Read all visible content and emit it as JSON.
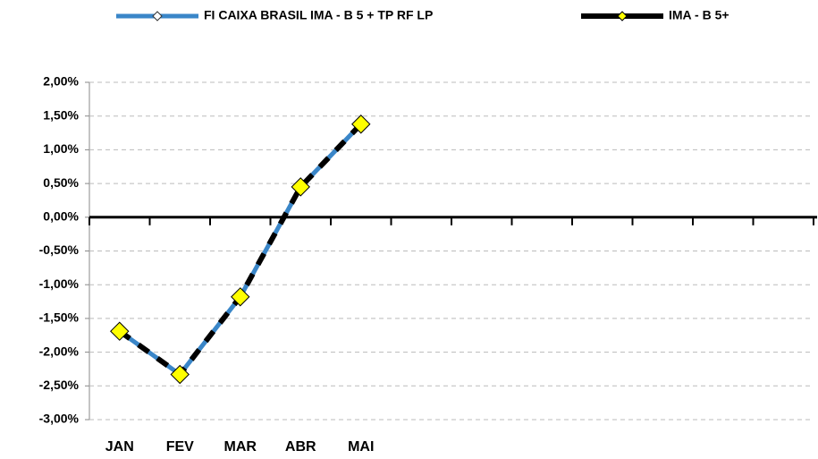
{
  "chart_data": {
    "type": "line",
    "categories": [
      "JAN",
      "FEV",
      "MAR",
      "ABR",
      "MAI",
      null,
      null,
      null,
      null,
      null,
      null,
      null
    ],
    "series": [
      {
        "name": "FI CAIXA BRASIL IMA - B 5 + TP RF LP",
        "color": "#3a86c8",
        "values": [
          -1.69,
          -2.33,
          -1.18,
          0.45,
          1.38,
          null,
          null,
          null,
          null,
          null,
          null,
          null
        ]
      },
      {
        "name": "IMA - B 5+",
        "color": "#000000",
        "values": [
          -1.69,
          -2.33,
          -1.18,
          0.45,
          1.38,
          null,
          null,
          null,
          null,
          null,
          null,
          null
        ]
      }
    ],
    "ylim": [
      -3,
      2
    ],
    "yticks": [
      {
        "value": -3,
        "label": "-3,00%"
      },
      {
        "value": -2.5,
        "label": "-2,50%"
      },
      {
        "value": -2,
        "label": "-2,00%"
      },
      {
        "value": -1.5,
        "label": "-1,50%"
      },
      {
        "value": -1,
        "label": "-1,00%"
      },
      {
        "value": -0.5,
        "label": "-0,50%"
      },
      {
        "value": 0,
        "label": "0,00%"
      },
      {
        "value": 0.5,
        "label": "0,50%"
      },
      {
        "value": 1,
        "label": "1,00%"
      },
      {
        "value": 1.5,
        "label": "1,50%"
      },
      {
        "value": 2,
        "label": "2,00%"
      }
    ],
    "grid": true,
    "legend": "top"
  }
}
